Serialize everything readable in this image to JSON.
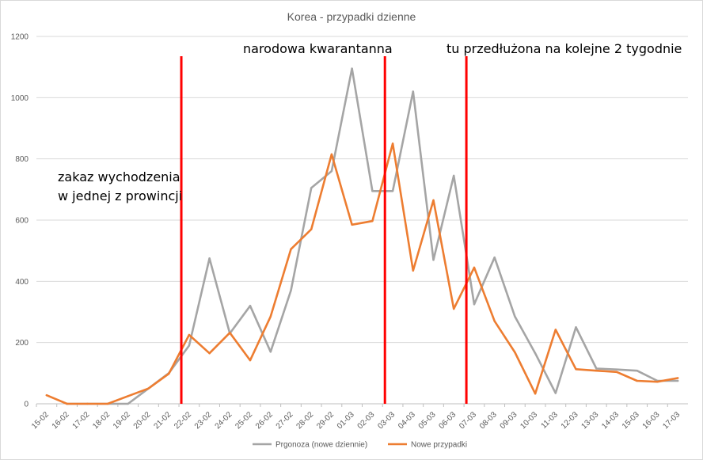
{
  "chart_data": {
    "type": "line",
    "title": "Korea - przypadki dzienne",
    "xlabel": "",
    "ylabel": "",
    "ylim": [
      0,
      1200
    ],
    "yticks": [
      0,
      200,
      400,
      600,
      800,
      1000,
      1200
    ],
    "grid": true,
    "legend_position": "bottom",
    "categories": [
      "15-02",
      "16-02",
      "17-02",
      "18-02",
      "19-02",
      "20-02",
      "21-02",
      "22-02",
      "23-02",
      "24-02",
      "25-02",
      "26-02",
      "27-02",
      "28-02",
      "29-02",
      "01-03",
      "02-03",
      "03-03",
      "04-03",
      "05-03",
      "06-03",
      "07-03",
      "08-03",
      "09-03",
      "10-03",
      "11-03",
      "12-03",
      "13-03",
      "14-03",
      "15-03",
      "16-03",
      "17-03"
    ],
    "series": [
      {
        "name": "Prgonoza (nowe dziennie)",
        "color": "#a5a5a5",
        "values": [
          null,
          0,
          0,
          0,
          0,
          50,
          100,
          190,
          475,
          230,
          320,
          170,
          370,
          705,
          760,
          1095,
          695,
          695,
          1020,
          470,
          745,
          325,
          478,
          285,
          165,
          35,
          250,
          115,
          112,
          108,
          75,
          75
        ]
      },
      {
        "name": "Nowe przypadki",
        "color": "#ed7d31",
        "values": [
          28,
          0,
          0,
          0,
          25,
          50,
          98,
          225,
          165,
          232,
          142,
          285,
          505,
          570,
          815,
          585,
          597,
          850,
          435,
          665,
          310,
          445,
          270,
          168,
          33,
          242,
          113,
          108,
          104,
          75,
          72,
          84
        ]
      }
    ],
    "markers": [
      {
        "category": "22-02",
        "label": "zakaz wychodzenia",
        "label2": "w jednej z prowincji",
        "color": "#ff0000"
      },
      {
        "category": "03-03",
        "label": "narodowa kwarantanna",
        "color": "#ff0000"
      },
      {
        "category": "07-03",
        "label": "tu przedłużona na kolejne 2 tygodnie",
        "color": "#ff0000"
      }
    ]
  }
}
